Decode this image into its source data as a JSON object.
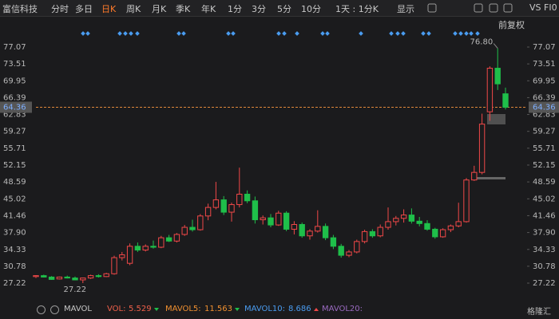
{
  "toolbar": {
    "stock": "富信科技",
    "tabs": [
      "分时",
      "多日",
      "日K",
      "周K",
      "月K",
      "季K",
      "年K",
      "1分",
      "3分",
      "5分",
      "10分",
      "1天 : 1分K"
    ],
    "active": 2,
    "display": "显示",
    "compare": "VS FI0",
    "adjust": "前复权"
  },
  "chart_data": {
    "type": "candlestick",
    "open": [
      28.6,
      28.8,
      28.5,
      28.1,
      28.5,
      28.3,
      27.9,
      28.3,
      28.8,
      28.6,
      29.2,
      32.6,
      31.4,
      35.0,
      34.2,
      35.0,
      34.8,
      36.8,
      36.1,
      37.5,
      39.0,
      38.5,
      41.4,
      43.2,
      44.8,
      42.2,
      43.8,
      46.0,
      44.6,
      40.6,
      41.0,
      39.5,
      42.0,
      38.6,
      39.6,
      37.2,
      38.2,
      39.2,
      36.8,
      35.0,
      33.1,
      33.8,
      36.0,
      38.1,
      37.2,
      39.0,
      40.2,
      40.9,
      41.6,
      40.3,
      39.8,
      38.6,
      37.0,
      38.5,
      39.3,
      40.2,
      49.0,
      50.6,
      63.4,
      72.6,
      67.2
    ],
    "high": [
      28.9,
      29.0,
      28.7,
      28.6,
      28.8,
      28.6,
      28.4,
      29.0,
      29.1,
      29.4,
      33.0,
      33.8,
      35.6,
      35.8,
      35.4,
      36.2,
      37.2,
      37.4,
      37.8,
      39.5,
      40.6,
      41.8,
      44.0,
      48.6,
      45.6,
      44.2,
      51.6,
      46.8,
      45.5,
      41.5,
      41.8,
      42.5,
      42.4,
      40.3,
      40.0,
      38.6,
      42.6,
      39.8,
      37.4,
      35.5,
      34.2,
      36.4,
      38.5,
      38.6,
      39.6,
      43.2,
      41.4,
      42.8,
      43.0,
      41.2,
      40.5,
      38.9,
      38.8,
      39.6,
      44.2,
      49.4,
      52.0,
      63.0,
      73.0,
      76.8,
      68.5
    ],
    "low": [
      28.3,
      28.4,
      27.9,
      28.0,
      28.2,
      27.8,
      27.22,
      28.1,
      28.4,
      28.5,
      29.0,
      32.0,
      31.0,
      33.8,
      33.9,
      34.5,
      34.6,
      35.9,
      35.8,
      37.2,
      38.1,
      38.3,
      40.5,
      42.8,
      41.6,
      40.2,
      43.2,
      44.1,
      39.8,
      39.6,
      39.0,
      39.3,
      38.2,
      37.5,
      36.8,
      36.4,
      37.9,
      36.3,
      34.4,
      32.6,
      32.7,
      33.5,
      35.6,
      36.8,
      36.9,
      38.5,
      39.4,
      40.0,
      39.8,
      39.2,
      38.3,
      36.6,
      36.8,
      38.0,
      39.0,
      40.0,
      48.8,
      50.2,
      61.5,
      68.0,
      63.9
    ],
    "close": [
      28.8,
      28.5,
      28.0,
      28.5,
      28.3,
      27.9,
      28.3,
      28.8,
      28.6,
      29.2,
      32.6,
      33.2,
      35.0,
      34.2,
      35.0,
      34.8,
      36.8,
      36.1,
      37.5,
      39.0,
      38.5,
      41.4,
      43.2,
      44.8,
      42.2,
      43.8,
      46.0,
      44.6,
      40.6,
      41.0,
      39.5,
      42.0,
      38.6,
      39.6,
      37.2,
      38.2,
      39.2,
      36.8,
      35.0,
      33.1,
      33.8,
      36.0,
      38.1,
      37.2,
      39.0,
      40.2,
      40.9,
      41.6,
      40.3,
      39.8,
      38.6,
      37.0,
      38.5,
      39.3,
      40.2,
      49.0,
      50.6,
      60.8,
      72.6,
      69.3,
      64.36
    ],
    "up_color": "#f04848",
    "down_color": "#1fbf4a",
    "ylim": [
      27.22,
      77.07
    ],
    "yticks": [
      77.07,
      73.51,
      69.95,
      66.39,
      62.83,
      59.27,
      55.71,
      52.15,
      48.59,
      45.02,
      41.46,
      {
        "value": 37.9,
        "label": "37.90"
      },
      34.33,
      30.78,
      27.22
    ],
    "last_price": {
      "value": 64.36,
      "label": "64.36"
    },
    "annotations": [
      "76.80",
      "27.22"
    ]
  },
  "indicator_bar": {
    "name": "MAVOL",
    "items": [
      {
        "label": "VOL:",
        "value": "5.529",
        "color": "#f0604a"
      },
      {
        "label": "MAVOL5:",
        "value": "11.563",
        "color": "#f09030"
      },
      {
        "label": "MAVOL10:",
        "value": "8.686",
        "color": "#4a9cf0"
      },
      {
        "label": "MAVOL20:",
        "value": "",
        "color": "#9a6ac0"
      }
    ]
  },
  "watermark": "格隆汇"
}
